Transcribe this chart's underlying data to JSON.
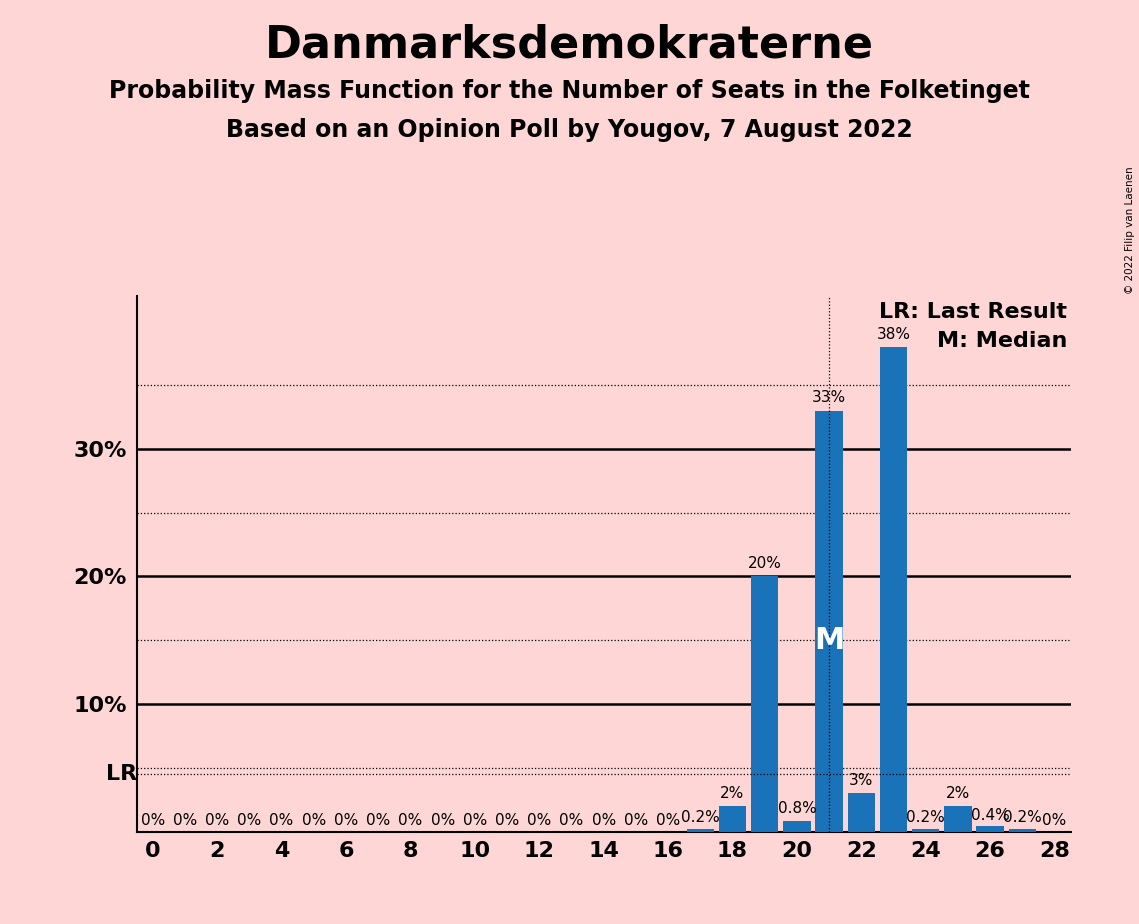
{
  "title": "Danmarksdemokraterne",
  "subtitle1": "Probability Mass Function for the Number of Seats in the Folketinget",
  "subtitle2": "Based on an Opinion Poll by Yougov, 7 August 2022",
  "copyright": "© 2022 Filip van Laenen",
  "background_color": "#ffd6d6",
  "bar_color": "#1a72b8",
  "seats": [
    0,
    1,
    2,
    3,
    4,
    5,
    6,
    7,
    8,
    9,
    10,
    11,
    12,
    13,
    14,
    15,
    16,
    17,
    18,
    19,
    20,
    21,
    22,
    23,
    24,
    25,
    26,
    27,
    28
  ],
  "probabilities": [
    0.0,
    0.0,
    0.0,
    0.0,
    0.0,
    0.0,
    0.0,
    0.0,
    0.0,
    0.0,
    0.0,
    0.0,
    0.0,
    0.0,
    0.0,
    0.0,
    0.0,
    0.2,
    2.0,
    20.0,
    0.8,
    33.0,
    3.0,
    38.0,
    0.2,
    2.0,
    0.4,
    0.2,
    0.0
  ],
  "labels": [
    "0%",
    "0%",
    "0%",
    "0%",
    "0%",
    "0%",
    "0%",
    "0%",
    "0%",
    "0%",
    "0%",
    "0%",
    "0%",
    "0%",
    "0%",
    "0%",
    "0%",
    "0.2%",
    "2%",
    "20%",
    "0.8%",
    "33%",
    "3%",
    "38%",
    "0.2%",
    "2%",
    "0.4%",
    "0.2%",
    "0%"
  ],
  "xlim": [
    -0.5,
    28.5
  ],
  "ylim": [
    0,
    42
  ],
  "yticks": [
    0,
    10,
    20,
    30
  ],
  "ytick_labels": [
    "",
    "10%",
    "20%",
    "30%"
  ],
  "xticks": [
    0,
    2,
    4,
    6,
    8,
    10,
    12,
    14,
    16,
    18,
    20,
    22,
    24,
    26,
    28
  ],
  "lr_y": 4.5,
  "lr_label": "LR",
  "median_seat": 21,
  "median_label": "M",
  "legend_lr": "LR: Last Result",
  "legend_m": "M: Median",
  "hlines_dotted": [
    5,
    15,
    25,
    35
  ],
  "hlines_solid": [
    10,
    20,
    30
  ],
  "title_fontsize": 32,
  "subtitle_fontsize": 17,
  "tick_fontsize": 16,
  "bar_label_fontsize": 11,
  "legend_fontsize": 16
}
